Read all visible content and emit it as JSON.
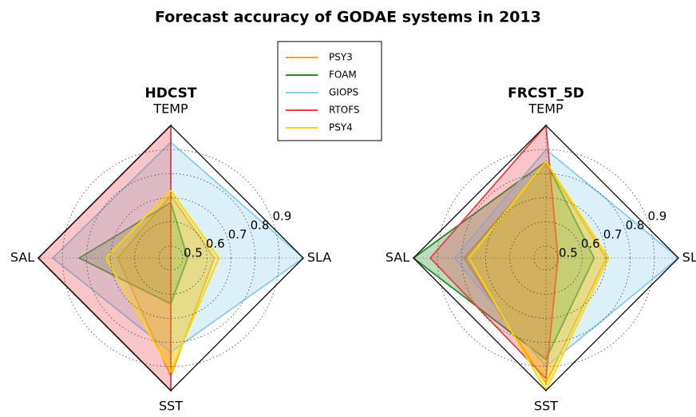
{
  "title": "Forecast accuracy of GODAE systems in 2013",
  "chart_data": [
    {
      "type": "radar",
      "title": "HDCST",
      "categories": [
        "TEMP",
        "SAL",
        "SST",
        "SLA"
      ],
      "rlim": [
        0.45,
        1.0
      ],
      "rticks": [
        0.5,
        0.6,
        0.7,
        0.8,
        0.9
      ],
      "grid": true,
      "series": [
        {
          "name": "PSY3",
          "color": "#ffa500",
          "values": [
            0.71,
            0.67,
            0.94,
            0.63
          ]
        },
        {
          "name": "FOAM",
          "color": "#228b22",
          "values": [
            0.68,
            0.83,
            0.64,
            0.52
          ]
        },
        {
          "name": "GIOPS",
          "color": "#87ceeb",
          "values": [
            0.93,
            0.94,
            0.84,
            1.0
          ]
        },
        {
          "name": "RTOFS",
          "color": "#e8404a",
          "values": [
            1.0,
            1.0,
            1.0,
            0.45
          ]
        },
        {
          "name": "PSY4",
          "color": "#ffd700",
          "values": [
            0.73,
            0.72,
            0.92,
            0.65
          ]
        }
      ]
    },
    {
      "type": "radar",
      "title": "FRCST_5D",
      "categories": [
        "TEMP",
        "SAL",
        "SST",
        "SLA"
      ],
      "rlim": [
        0.45,
        1.0
      ],
      "rticks": [
        0.5,
        0.6,
        0.7,
        0.8,
        0.9
      ],
      "grid": true,
      "series": [
        {
          "name": "PSY3",
          "color": "#ffa500",
          "values": [
            0.84,
            0.79,
            0.97,
            0.7
          ]
        },
        {
          "name": "FOAM",
          "color": "#228b22",
          "values": [
            0.85,
            1.0,
            0.87,
            0.65
          ]
        },
        {
          "name": "GIOPS",
          "color": "#87ceeb",
          "values": [
            0.9,
            0.83,
            0.9,
            1.0
          ]
        },
        {
          "name": "RTOFS",
          "color": "#e8404a",
          "values": [
            1.0,
            0.93,
            0.95,
            0.5
          ]
        },
        {
          "name": "PSY4",
          "color": "#ffd700",
          "values": [
            0.85,
            0.77,
            1.0,
            0.71
          ]
        }
      ]
    }
  ]
}
